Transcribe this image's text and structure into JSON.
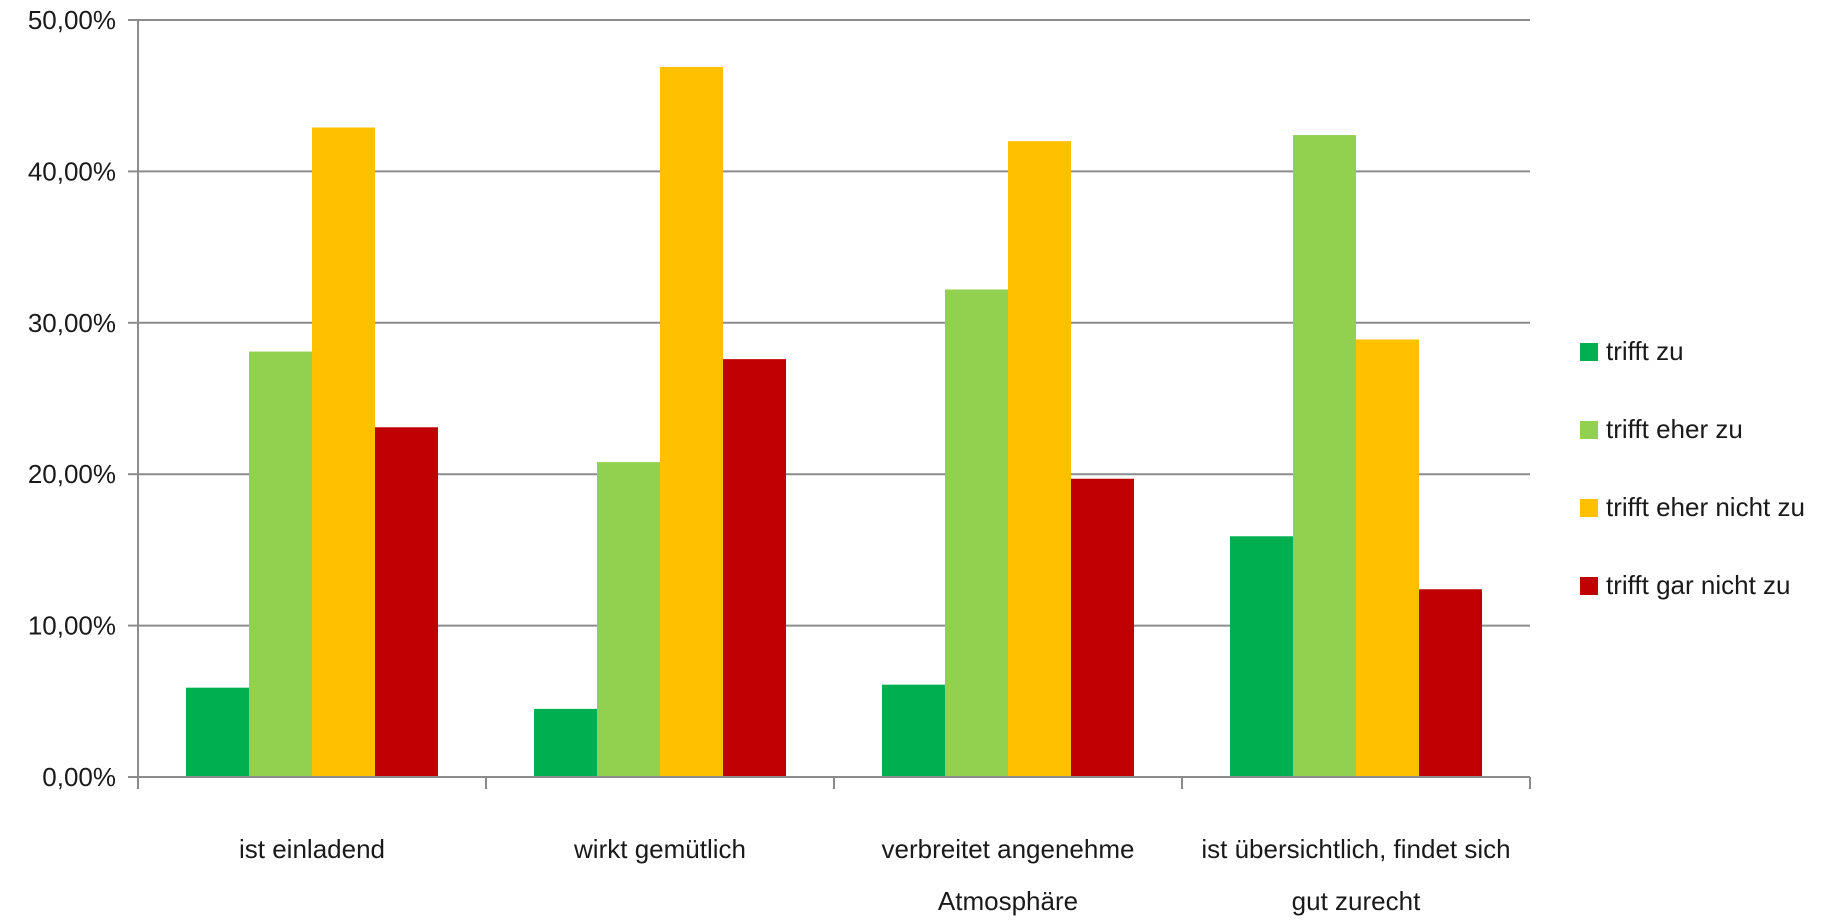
{
  "chart_data": {
    "type": "bar",
    "categories": [
      [
        "ist einladend"
      ],
      [
        "wirkt gemütlich"
      ],
      [
        "verbreitet angenehme",
        "Atmosphäre"
      ],
      [
        "ist übersichtlich, findet sich",
        "gut zurecht"
      ]
    ],
    "series": [
      {
        "name": "trifft zu",
        "color": "#00b050",
        "values": [
          5.9,
          4.5,
          6.1,
          15.9
        ]
      },
      {
        "name": "trifft eher zu",
        "color": "#92d050",
        "values": [
          28.1,
          20.8,
          32.2,
          42.4
        ]
      },
      {
        "name": "trifft eher nicht zu",
        "color": "#ffc000",
        "values": [
          42.9,
          46.9,
          42.0,
          28.9
        ]
      },
      {
        "name": "trifft gar nicht zu",
        "color": "#c00000",
        "values": [
          23.1,
          27.6,
          19.7,
          12.4
        ]
      }
    ],
    "yticks": [
      "0,00%",
      "10,00%",
      "20,00%",
      "30,00%",
      "40,00%",
      "50,00%"
    ],
    "ylim": [
      0,
      50
    ],
    "grid": true,
    "legend_position": "right"
  }
}
